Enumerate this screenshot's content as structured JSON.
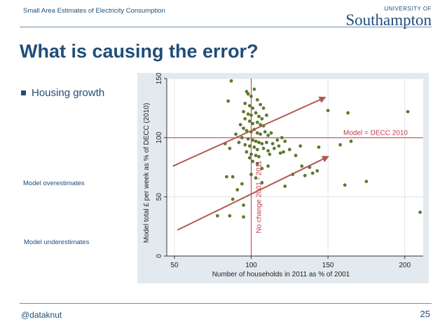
{
  "header": {
    "title": "Small Area Estimates of Electricity Consumption"
  },
  "logo": {
    "top": "UNIVERSITY OF",
    "main": "Southampton"
  },
  "slide": {
    "title": "What is causing the error?",
    "bullet": "Housing growth",
    "annotation_over": "Model overestimates",
    "annotation_under": "Model underestimates"
  },
  "footer": {
    "handle": "@dataknut",
    "page": "25"
  },
  "colors": {
    "accent": "#1f4e79",
    "points": "#5f7a2e",
    "reference": "#c0394b",
    "arrow": "#b2574e"
  },
  "chart_data": {
    "type": "scatter",
    "xlabel": "Number of households in 2011 as % of 2001",
    "ylabel": "Model total £ per week as % of DECC (2010)",
    "xlim": [
      45,
      212
    ],
    "ylim": [
      0,
      150
    ],
    "xticks": [
      50,
      100,
      150,
      200
    ],
    "yticks": [
      0,
      50,
      100,
      150
    ],
    "grid": true,
    "hline": {
      "y": 100,
      "label": "Model = DECC 2010"
    },
    "vline": {
      "x": 100,
      "label": "No change 2001 - 2011"
    },
    "points": [
      [
        87,
        148
      ],
      [
        85,
        131
      ],
      [
        102,
        141
      ],
      [
        97,
        139
      ],
      [
        98,
        137
      ],
      [
        100,
        135
      ],
      [
        104,
        132
      ],
      [
        96,
        129
      ],
      [
        99,
        127
      ],
      [
        101,
        125
      ],
      [
        106,
        128
      ],
      [
        108,
        125
      ],
      [
        95,
        122
      ],
      [
        98,
        120
      ],
      [
        100,
        119
      ],
      [
        103,
        121
      ],
      [
        105,
        118
      ],
      [
        107,
        116
      ],
      [
        110,
        119
      ],
      [
        96,
        116
      ],
      [
        99,
        114
      ],
      [
        101,
        112
      ],
      [
        104,
        113
      ],
      [
        106,
        111
      ],
      [
        108,
        110
      ],
      [
        93,
        111
      ],
      [
        95,
        108
      ],
      [
        97,
        106
      ],
      [
        100,
        105
      ],
      [
        102,
        107
      ],
      [
        104,
        104
      ],
      [
        106,
        103
      ],
      [
        109,
        105
      ],
      [
        111,
        102
      ],
      [
        113,
        104
      ],
      [
        90,
        103
      ],
      [
        94,
        100
      ],
      [
        98,
        99
      ],
      [
        101,
        98
      ],
      [
        103,
        97
      ],
      [
        105,
        96
      ],
      [
        107,
        95
      ],
      [
        110,
        96
      ],
      [
        114,
        95
      ],
      [
        117,
        98
      ],
      [
        120,
        100
      ],
      [
        122,
        97
      ],
      [
        96,
        94
      ],
      [
        99,
        93
      ],
      [
        102,
        92
      ],
      [
        104,
        90
      ],
      [
        108,
        91
      ],
      [
        111,
        89
      ],
      [
        115,
        91
      ],
      [
        118,
        93
      ],
      [
        121,
        88
      ],
      [
        125,
        90
      ],
      [
        97,
        88
      ],
      [
        100,
        86
      ],
      [
        103,
        85
      ],
      [
        105,
        84
      ],
      [
        112,
        86
      ],
      [
        119,
        87
      ],
      [
        83,
        95
      ],
      [
        86,
        91
      ],
      [
        92,
        96
      ],
      [
        99,
        83
      ],
      [
        101,
        80
      ],
      [
        104,
        78
      ],
      [
        107,
        74
      ],
      [
        111,
        76
      ],
      [
        100,
        69
      ],
      [
        103,
        66
      ],
      [
        88,
        67
      ],
      [
        84,
        67
      ],
      [
        94,
        61
      ],
      [
        107,
        62
      ],
      [
        122,
        59
      ],
      [
        127,
        69
      ],
      [
        133,
        76
      ],
      [
        138,
        75
      ],
      [
        140,
        70
      ],
      [
        135,
        68
      ],
      [
        143,
        72
      ],
      [
        144,
        92
      ],
      [
        132,
        93
      ],
      [
        129,
        85
      ],
      [
        158,
        94
      ],
      [
        165,
        97
      ],
      [
        150,
        123
      ],
      [
        163,
        121
      ],
      [
        202,
        122
      ],
      [
        175,
        63
      ],
      [
        161,
        60
      ],
      [
        210,
        37
      ],
      [
        95,
        33
      ],
      [
        86,
        34
      ],
      [
        78,
        34
      ],
      [
        95,
        43
      ],
      [
        88,
        48
      ],
      [
        91,
        56
      ]
    ],
    "arrows": [
      {
        "from": [
          49,
          76
        ],
        "to": [
          148,
          134
        ]
      },
      {
        "from": [
          52,
          22
        ],
        "to": [
          150,
          84
        ]
      }
    ]
  }
}
